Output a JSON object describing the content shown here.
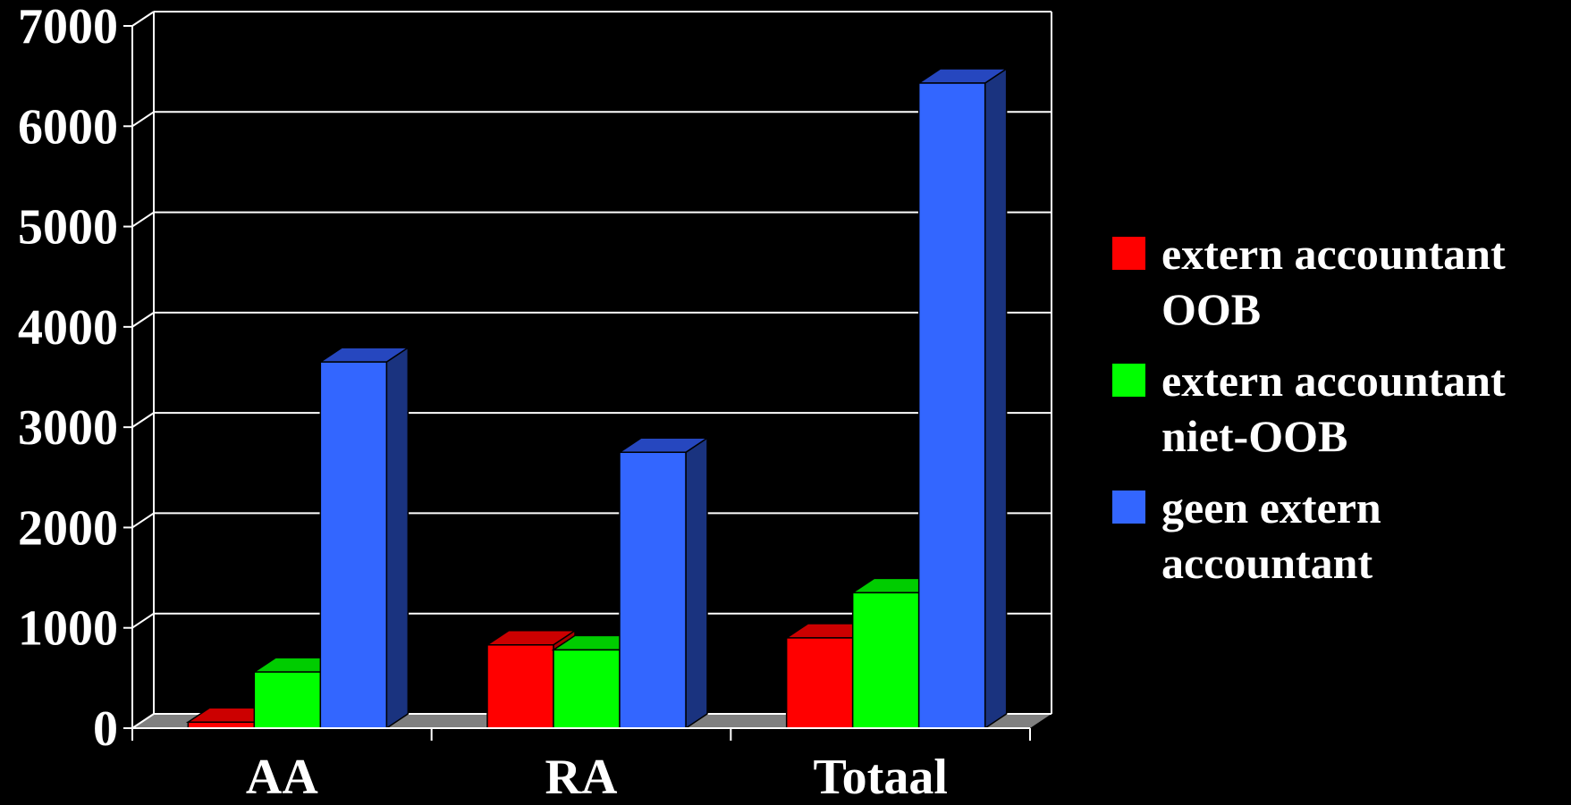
{
  "chart_data": {
    "type": "bar",
    "categories": [
      "AA",
      "RA",
      "Totaal"
    ],
    "series": [
      {
        "name": "extern accountant\nOOB",
        "color": "#ff0000",
        "side_color": "#aa0000",
        "top_color": "#cc0000",
        "values": [
          60,
          830,
          900
        ]
      },
      {
        "name": "extern accountant\nniet-OOB",
        "color": "#00ff00",
        "side_color": "#00aa00",
        "top_color": "#00cc00",
        "values": [
          560,
          780,
          1350
        ]
      },
      {
        "name": "geen extern\naccountant",
        "color": "#3366ff",
        "side_color": "#1a337f",
        "top_color": "#2647bf",
        "values": [
          3650,
          2750,
          6430
        ]
      }
    ],
    "yticks": [
      "0",
      "1000",
      "2000",
      "3000",
      "4000",
      "5000",
      "6000",
      "7000"
    ],
    "ylim": [
      0,
      7000
    ],
    "title": "",
    "xlabel": "",
    "ylabel": "",
    "grid": true,
    "legend_position": "right",
    "three_d": true,
    "background_color": "#000000",
    "grid_color": "#ffffff",
    "floor_color": "#808080"
  }
}
